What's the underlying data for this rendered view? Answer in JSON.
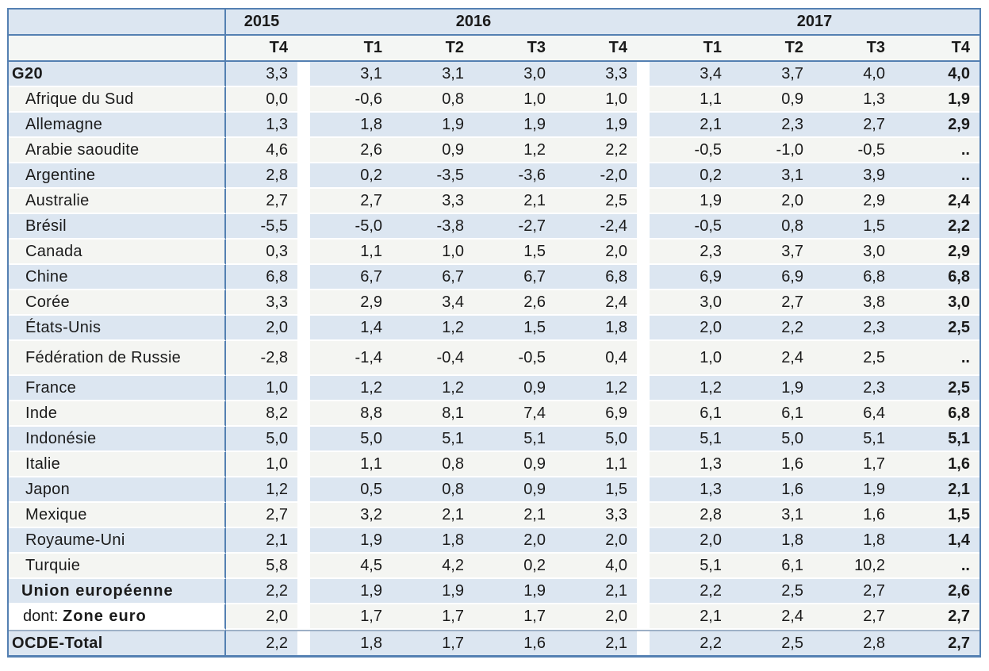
{
  "chart_data": {
    "type": "table",
    "description": "Quarterly growth rates table (values with French decimal commas), G20 and OECD economies, 2015 T4 to 2017 T4",
    "missing_value_symbol": "..",
    "column_groups": [
      {
        "year": "2015",
        "quarters": [
          "T4"
        ]
      },
      {
        "year": "2016",
        "quarters": [
          "T1",
          "T2",
          "T3",
          "T4"
        ]
      },
      {
        "year": "2017",
        "quarters": [
          "T1",
          "T2",
          "T3",
          "T4"
        ]
      }
    ],
    "rows": [
      {
        "label": "G20",
        "style": "aggregate",
        "values": [
          "3,3",
          "3,1",
          "3,1",
          "3,0",
          "3,3",
          "3,4",
          "3,7",
          "4,0",
          "4,0"
        ]
      },
      {
        "label": "Afrique du Sud",
        "style": "country",
        "values": [
          "0,0",
          "-0,6",
          "0,8",
          "1,0",
          "1,0",
          "1,1",
          "0,9",
          "1,3",
          "1,9"
        ]
      },
      {
        "label": "Allemagne",
        "style": "country",
        "values": [
          "1,3",
          "1,8",
          "1,9",
          "1,9",
          "1,9",
          "2,1",
          "2,3",
          "2,7",
          "2,9"
        ]
      },
      {
        "label": "Arabie saoudite",
        "style": "country",
        "values": [
          "4,6",
          "2,6",
          "0,9",
          "1,2",
          "2,2",
          "-0,5",
          "-1,0",
          "-0,5",
          ".."
        ]
      },
      {
        "label": "Argentine",
        "style": "country",
        "values": [
          "2,8",
          "0,2",
          "-3,5",
          "-3,6",
          "-2,0",
          "0,2",
          "3,1",
          "3,9",
          ".."
        ]
      },
      {
        "label": "Australie",
        "style": "country",
        "values": [
          "2,7",
          "2,7",
          "3,3",
          "2,1",
          "2,5",
          "1,9",
          "2,0",
          "2,9",
          "2,4"
        ]
      },
      {
        "label": "Brésil",
        "style": "country",
        "values": [
          "-5,5",
          "-5,0",
          "-3,8",
          "-2,7",
          "-2,4",
          "-0,5",
          "0,8",
          "1,5",
          "2,2"
        ]
      },
      {
        "label": "Canada",
        "style": "country",
        "values": [
          "0,3",
          "1,1",
          "1,0",
          "1,5",
          "2,0",
          "2,3",
          "3,7",
          "3,0",
          "2,9"
        ]
      },
      {
        "label": "Chine",
        "style": "country",
        "values": [
          "6,8",
          "6,7",
          "6,7",
          "6,7",
          "6,8",
          "6,9",
          "6,9",
          "6,8",
          "6,8"
        ]
      },
      {
        "label": "Corée",
        "style": "country",
        "values": [
          "3,3",
          "2,9",
          "3,4",
          "2,6",
          "2,4",
          "3,0",
          "2,7",
          "3,8",
          "3,0"
        ]
      },
      {
        "label": "États-Unis",
        "style": "country",
        "values": [
          "2,0",
          "1,4",
          "1,2",
          "1,5",
          "1,8",
          "2,0",
          "2,2",
          "2,3",
          "2,5"
        ]
      },
      {
        "label": "Fédération de Russie",
        "style": "country",
        "tall": true,
        "values": [
          "-2,8",
          "-1,4",
          "-0,4",
          "-0,5",
          "0,4",
          "1,0",
          "2,4",
          "2,5",
          ".."
        ]
      },
      {
        "label": "France",
        "style": "country",
        "values": [
          "1,0",
          "1,2",
          "1,2",
          "0,9",
          "1,2",
          "1,2",
          "1,9",
          "2,3",
          "2,5"
        ]
      },
      {
        "label": "Inde",
        "style": "country",
        "values": [
          "8,2",
          "8,8",
          "8,1",
          "7,4",
          "6,9",
          "6,1",
          "6,1",
          "6,4",
          "6,8"
        ]
      },
      {
        "label": "Indonésie",
        "style": "country",
        "values": [
          "5,0",
          "5,0",
          "5,1",
          "5,1",
          "5,0",
          "5,1",
          "5,0",
          "5,1",
          "5,1"
        ]
      },
      {
        "label": "Italie",
        "style": "country",
        "values": [
          "1,0",
          "1,1",
          "0,8",
          "0,9",
          "1,1",
          "1,3",
          "1,6",
          "1,7",
          "1,6"
        ]
      },
      {
        "label": "Japon",
        "style": "country",
        "values": [
          "1,2",
          "0,5",
          "0,8",
          "0,9",
          "1,5",
          "1,3",
          "1,6",
          "1,9",
          "2,1"
        ]
      },
      {
        "label": "Mexique",
        "style": "country",
        "values": [
          "2,7",
          "3,2",
          "2,1",
          "2,1",
          "3,3",
          "2,8",
          "3,1",
          "1,6",
          "1,5"
        ]
      },
      {
        "label": "Royaume-Uni",
        "style": "country",
        "values": [
          "2,1",
          "1,9",
          "1,8",
          "2,0",
          "2,0",
          "2,0",
          "1,8",
          "1,8",
          "1,4"
        ]
      },
      {
        "label": "Turquie",
        "style": "country",
        "values": [
          "5,8",
          "4,5",
          "4,2",
          "0,2",
          "4,0",
          "5,1",
          "6,1",
          "10,2",
          ".."
        ]
      },
      {
        "label": "Union européenne",
        "style": "union",
        "values": [
          "2,2",
          "1,9",
          "1,9",
          "1,9",
          "2,1",
          "2,2",
          "2,5",
          "2,7",
          "2,6"
        ]
      },
      {
        "label": "Zone euro",
        "label_prefix": "dont:",
        "style": "zone",
        "values": [
          "2,0",
          "1,7",
          "1,7",
          "1,7",
          "2,0",
          "2,1",
          "2,4",
          "2,7",
          "2,7"
        ]
      },
      {
        "label": "OCDE-Total",
        "style": "aggregate",
        "values": [
          "2,2",
          "1,8",
          "1,7",
          "1,6",
          "2,1",
          "2,2",
          "2,5",
          "2,8",
          "2,7"
        ]
      }
    ],
    "layout_hints": {
      "last_column_bold": true,
      "zebra_striping": "first body row blue, alternating",
      "group_separator": "white vertical gap between year groups"
    }
  },
  "colors": {
    "accent_border": "#5480b2",
    "row_blue": "#dce6f1",
    "row_light": "#f4f5f2",
    "rule_above_total": "#9db0c6",
    "text": "#1b1b1b"
  }
}
